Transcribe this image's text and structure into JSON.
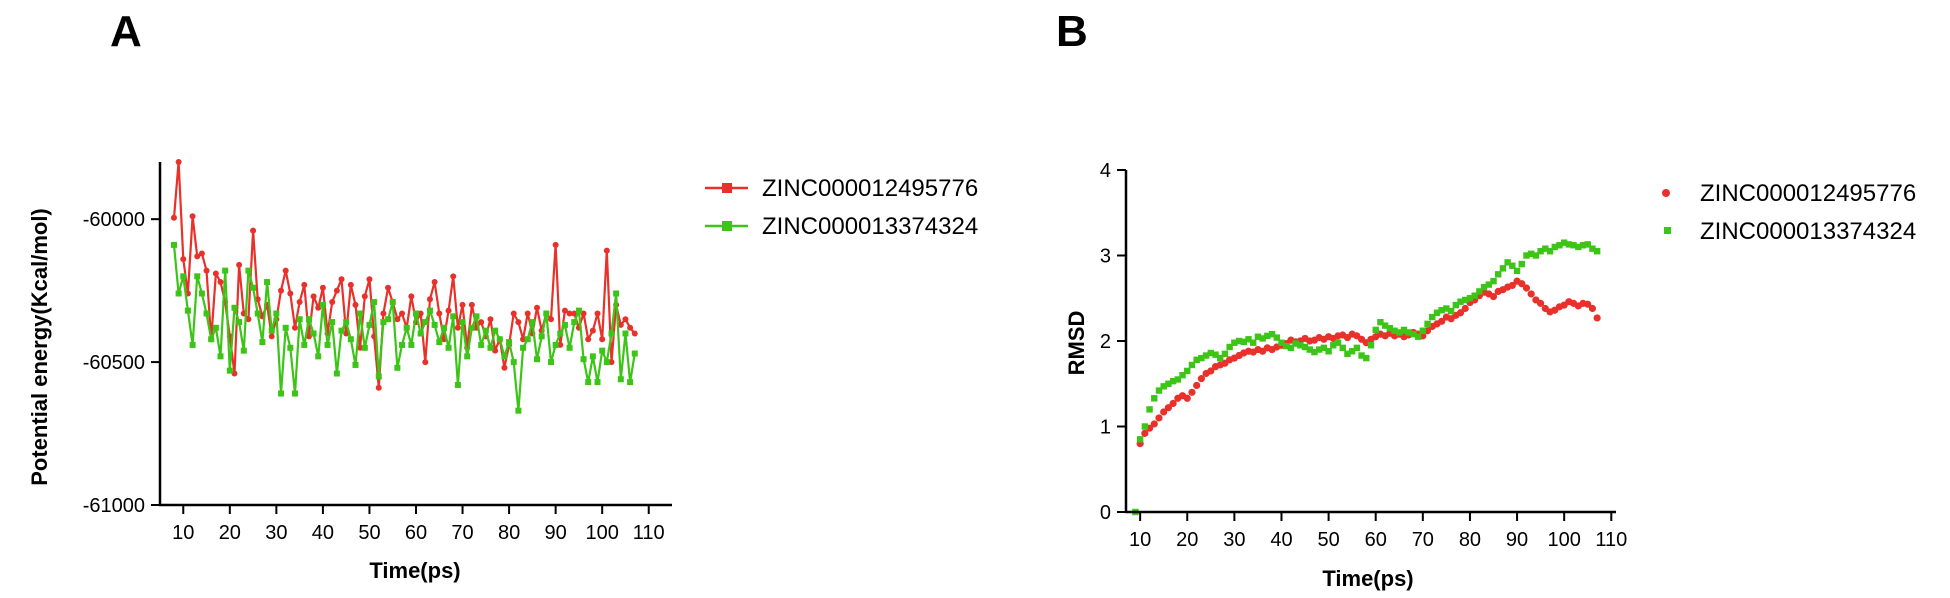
{
  "colors": {
    "red": "#e8312a",
    "green": "#3cc417",
    "axis": "#000000"
  },
  "chart_data": [
    {
      "panel": "A",
      "type": "line",
      "xlabel": "Time(ps)",
      "ylabel": "Potential energy(Kcal/mol)",
      "xlim": [
        5,
        115
      ],
      "ylim": [
        -61000,
        -59800
      ],
      "xticks": [
        10,
        20,
        30,
        40,
        50,
        60,
        70,
        80,
        90,
        100,
        110
      ],
      "yticks": [
        -60000,
        -60500,
        -61000
      ],
      "legend_position": "right",
      "series": [
        {
          "name": "ZINC000012495776",
          "color": "#e8312a",
          "x": [
            8,
            9,
            10,
            11,
            12,
            13,
            14,
            15,
            16,
            17,
            18,
            19,
            20,
            21,
            22,
            23,
            24,
            25,
            26,
            27,
            28,
            29,
            30,
            31,
            32,
            33,
            34,
            35,
            36,
            37,
            38,
            39,
            40,
            41,
            42,
            43,
            44,
            45,
            46,
            47,
            48,
            49,
            50,
            51,
            52,
            53,
            54,
            55,
            56,
            57,
            58,
            59,
            60,
            61,
            62,
            63,
            64,
            65,
            66,
            67,
            68,
            69,
            70,
            71,
            72,
            73,
            74,
            75,
            76,
            77,
            78,
            79,
            80,
            81,
            82,
            83,
            84,
            85,
            86,
            87,
            88,
            89,
            90,
            91,
            92,
            93,
            94,
            95,
            96,
            97,
            98,
            99,
            100,
            101,
            102,
            103,
            104,
            105,
            106,
            107
          ],
          "y": [
            -59995,
            -59800,
            -60140,
            -60260,
            -59990,
            -60130,
            -60120,
            -60180,
            -60420,
            -60190,
            -60220,
            -60290,
            -60410,
            -60540,
            -60160,
            -60330,
            -60350,
            -60040,
            -60280,
            -60340,
            -60300,
            -60410,
            -60350,
            -60250,
            -60180,
            -60260,
            -60380,
            -60290,
            -60230,
            -60410,
            -60270,
            -60310,
            -60240,
            -60400,
            -60290,
            -60250,
            -60210,
            -60400,
            -60230,
            -60300,
            -60450,
            -60270,
            -60210,
            -60410,
            -60590,
            -60330,
            -60240,
            -60290,
            -60350,
            -60330,
            -60380,
            -60270,
            -60360,
            -60330,
            -60500,
            -60280,
            -60220,
            -60330,
            -60420,
            -60320,
            -60200,
            -60380,
            -60300,
            -60450,
            -60300,
            -60380,
            -60360,
            -60410,
            -60350,
            -60460,
            -60420,
            -60520,
            -60440,
            -60330,
            -60360,
            -60420,
            -60330,
            -60400,
            -60310,
            -60390,
            -60330,
            -60350,
            -60090,
            -60440,
            -60320,
            -60330,
            -60330,
            -60380,
            -60330,
            -60420,
            -60390,
            -60330,
            -60420,
            -60110,
            -60500,
            -60300,
            -60370,
            -60350,
            -60380,
            -60400
          ]
        },
        {
          "name": "ZINC000013374324",
          "color": "#3cc417",
          "x": [
            8,
            9,
            10,
            11,
            12,
            13,
            14,
            15,
            16,
            17,
            18,
            19,
            20,
            21,
            22,
            23,
            24,
            25,
            26,
            27,
            28,
            29,
            30,
            31,
            32,
            33,
            34,
            35,
            36,
            37,
            38,
            39,
            40,
            41,
            42,
            43,
            44,
            45,
            46,
            47,
            48,
            49,
            50,
            51,
            52,
            53,
            54,
            55,
            56,
            57,
            58,
            59,
            60,
            61,
            62,
            63,
            64,
            65,
            66,
            67,
            68,
            69,
            70,
            71,
            72,
            73,
            74,
            75,
            76,
            77,
            78,
            79,
            80,
            81,
            82,
            83,
            84,
            85,
            86,
            87,
            88,
            89,
            90,
            91,
            92,
            93,
            94,
            95,
            96,
            97,
            98,
            99,
            100,
            101,
            102,
            103,
            104,
            105,
            106,
            107
          ],
          "y": [
            -60090,
            -60260,
            -60200,
            -60320,
            -60440,
            -60200,
            -60260,
            -60330,
            -60420,
            -60380,
            -60480,
            -60180,
            -60530,
            -60310,
            -60360,
            -60460,
            -60180,
            -60240,
            -60330,
            -60430,
            -60220,
            -60390,
            -60330,
            -60610,
            -60380,
            -60450,
            -60610,
            -60350,
            -60440,
            -60350,
            -60400,
            -60480,
            -60300,
            -60440,
            -60360,
            -60540,
            -60390,
            -60360,
            -60420,
            -60510,
            -60330,
            -60450,
            -60370,
            -60290,
            -60550,
            -60360,
            -60350,
            -60290,
            -60520,
            -60440,
            -60380,
            -60440,
            -60330,
            -60400,
            -60360,
            -60320,
            -60370,
            -60430,
            -60380,
            -60450,
            -60340,
            -60580,
            -60360,
            -60480,
            -60380,
            -60340,
            -60440,
            -60390,
            -60450,
            -60390,
            -60420,
            -60480,
            -60430,
            -60500,
            -60670,
            -60450,
            -60420,
            -60360,
            -60490,
            -60410,
            -60330,
            -60500,
            -60440,
            -60400,
            -60370,
            -60450,
            -60360,
            -60320,
            -60490,
            -60570,
            -60480,
            -60570,
            -60460,
            -60500,
            -60400,
            -60260,
            -60560,
            -60400,
            -60570,
            -60470
          ]
        }
      ]
    },
    {
      "panel": "B",
      "type": "scatter",
      "xlabel": "Time(ps)",
      "ylabel": "RMSD",
      "xlim": [
        7,
        111
      ],
      "ylim": [
        0,
        4
      ],
      "xticks": [
        10,
        20,
        30,
        40,
        50,
        60,
        70,
        80,
        90,
        100,
        110
      ],
      "yticks": [
        0,
        1,
        2,
        3,
        4
      ],
      "legend_position": "right",
      "series": [
        {
          "name": "ZINC000012495776",
          "color": "#e8312a",
          "x": [
            10,
            11,
            12,
            13,
            14,
            15,
            16,
            17,
            18,
            19,
            20,
            21,
            22,
            23,
            24,
            25,
            26,
            27,
            28,
            29,
            30,
            31,
            32,
            33,
            34,
            35,
            36,
            37,
            38,
            39,
            40,
            41,
            42,
            43,
            44,
            45,
            46,
            47,
            48,
            49,
            50,
            51,
            52,
            53,
            54,
            55,
            56,
            57,
            58,
            59,
            60,
            61,
            62,
            63,
            64,
            65,
            66,
            67,
            68,
            69,
            70,
            71,
            72,
            73,
            74,
            75,
            76,
            77,
            78,
            79,
            80,
            81,
            82,
            83,
            84,
            85,
            86,
            87,
            88,
            89,
            90,
            91,
            92,
            93,
            94,
            95,
            96,
            97,
            98,
            99,
            100,
            101,
            102,
            103,
            104,
            105,
            106,
            107
          ],
          "y": [
            0.8,
            0.92,
            0.98,
            1.03,
            1.1,
            1.17,
            1.22,
            1.27,
            1.33,
            1.36,
            1.33,
            1.4,
            1.48,
            1.56,
            1.62,
            1.65,
            1.7,
            1.72,
            1.74,
            1.78,
            1.8,
            1.83,
            1.86,
            1.88,
            1.87,
            1.9,
            1.88,
            1.92,
            1.9,
            1.93,
            1.95,
            1.97,
            2.01,
            1.99,
            2.0,
            2.03,
            2.0,
            2.01,
            2.04,
            2.02,
            2.05,
            2.03,
            2.06,
            2.07,
            2.04,
            2.08,
            2.06,
            2.02,
            1.98,
            2.02,
            2.05,
            2.08,
            2.06,
            2.09,
            2.06,
            2.08,
            2.05,
            2.07,
            2.1,
            2.08,
            2.06,
            2.12,
            2.17,
            2.2,
            2.23,
            2.28,
            2.26,
            2.3,
            2.33,
            2.38,
            2.45,
            2.48,
            2.53,
            2.57,
            2.55,
            2.52,
            2.58,
            2.6,
            2.63,
            2.65,
            2.7,
            2.67,
            2.62,
            2.55,
            2.48,
            2.44,
            2.38,
            2.34,
            2.36,
            2.4,
            2.42,
            2.46,
            2.44,
            2.41,
            2.44,
            2.43,
            2.38,
            2.27
          ]
        },
        {
          "name": "ZINC000013374324",
          "color": "#3cc417",
          "x": [
            9,
            10,
            11,
            12,
            13,
            14,
            15,
            16,
            17,
            18,
            19,
            20,
            21,
            22,
            23,
            24,
            25,
            26,
            27,
            28,
            29,
            30,
            31,
            32,
            33,
            34,
            35,
            36,
            37,
            38,
            39,
            40,
            41,
            42,
            43,
            44,
            45,
            46,
            47,
            48,
            49,
            50,
            51,
            52,
            53,
            54,
            55,
            56,
            57,
            58,
            59,
            60,
            61,
            62,
            63,
            64,
            65,
            66,
            67,
            68,
            69,
            70,
            71,
            72,
            73,
            74,
            75,
            76,
            77,
            78,
            79,
            80,
            81,
            82,
            83,
            84,
            85,
            86,
            87,
            88,
            89,
            90,
            91,
            92,
            93,
            94,
            95,
            96,
            97,
            98,
            99,
            100,
            101,
            102,
            103,
            104,
            105,
            106,
            107
          ],
          "y": [
            0.0,
            0.85,
            1.0,
            1.2,
            1.33,
            1.42,
            1.47,
            1.5,
            1.53,
            1.55,
            1.6,
            1.65,
            1.72,
            1.78,
            1.8,
            1.83,
            1.86,
            1.84,
            1.8,
            1.85,
            1.93,
            1.98,
            2.0,
            1.99,
            2.02,
            1.98,
            2.05,
            2.03,
            2.06,
            2.08,
            2.04,
            1.98,
            1.94,
            1.92,
            1.97,
            1.95,
            1.93,
            1.9,
            1.87,
            1.9,
            1.92,
            1.88,
            1.95,
            1.98,
            1.92,
            1.85,
            1.88,
            1.92,
            1.83,
            1.8,
            1.95,
            2.13,
            2.22,
            2.18,
            2.15,
            2.12,
            2.1,
            2.13,
            2.1,
            2.08,
            2.05,
            2.12,
            2.2,
            2.28,
            2.33,
            2.36,
            2.38,
            2.35,
            2.42,
            2.46,
            2.48,
            2.5,
            2.53,
            2.58,
            2.63,
            2.66,
            2.7,
            2.78,
            2.85,
            2.92,
            2.88,
            2.82,
            2.9,
            3.0,
            3.02,
            3.0,
            3.05,
            3.08,
            3.05,
            3.1,
            3.12,
            3.15,
            3.13,
            3.12,
            3.1,
            3.12,
            3.13,
            3.08,
            3.05
          ]
        }
      ]
    }
  ]
}
